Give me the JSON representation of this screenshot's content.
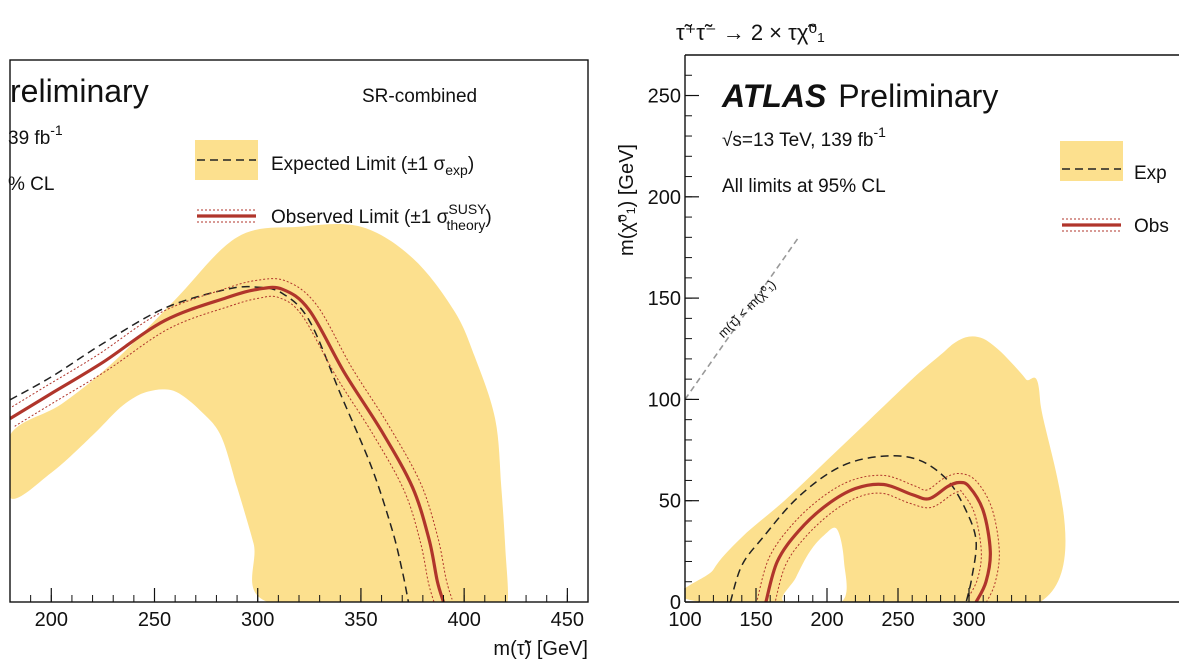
{
  "chart_data": [
    {
      "type": "contour-limit",
      "panel": "left",
      "label_lines": [
        "reliminary",
        "39 fb",
        "% CL"
      ],
      "label_sup": "-1",
      "sr_label": "SR-combined",
      "xlabel": "m(τ̃) [GeV]",
      "xlim": [
        180,
        460
      ],
      "ylim": [
        0,
        260
      ],
      "x_ticks": [
        200,
        250,
        300,
        350,
        400,
        450
      ],
      "legend": {
        "expected": {
          "text": "Expected Limit (±1 σ",
          "sub": "exp",
          "close": ")"
        },
        "observed": {
          "text": "Observed Limit (±1 σ",
          "sup": "SUSY",
          "sub": "theory",
          "close": ")"
        }
      },
      "series": [
        {
          "name": "Observed Limit",
          "x": [
            180,
            200,
            225,
            255,
            285,
            300,
            312,
            325,
            342,
            360,
            375,
            383,
            387,
            390
          ],
          "y": [
            88,
            100,
            115,
            135,
            146,
            150,
            150,
            140,
            110,
            82,
            55,
            30,
            10,
            0
          ]
        },
        {
          "name": "Expected Limit",
          "x": [
            180,
            200,
            225,
            255,
            285,
            300,
            312,
            325,
            340,
            355,
            365,
            370,
            373
          ],
          "y": [
            97,
            108,
            124,
            141,
            150,
            151,
            148,
            135,
            100,
            65,
            35,
            15,
            0
          ]
        }
      ],
      "band_expected_outer": {
        "x": [
          180,
          205,
          230,
          260,
          290,
          320,
          350,
          375,
          395,
          405,
          415,
          418,
          420,
          421,
          415,
          410,
          400,
          380,
          305,
          298,
          290,
          282,
          272,
          262,
          255,
          247,
          240,
          232,
          220,
          200,
          180
        ],
        "y": [
          80,
          95,
          115,
          145,
          175,
          180,
          180,
          165,
          140,
          118,
          88,
          55,
          25,
          0,
          0,
          0,
          0,
          0,
          0,
          28,
          55,
          80,
          92,
          100,
          102,
          101,
          98,
          92,
          80,
          62,
          50
        ]
      },
      "colors": {
        "band": "#fce08e",
        "observed": "#b0352b",
        "expected": "#222222"
      }
    },
    {
      "type": "contour-limit",
      "panel": "right",
      "title": "τ̃⁺τ̃⁻ → 2 × τχ̃⁰₁",
      "atlas": "ATLAS",
      "preliminary": "Preliminary",
      "energy": "√s=13 TeV, 139 fb",
      "energy_sup": "-1",
      "cl": "All limits at 95% CL",
      "diag_label": "m(τ̃) < m(χ̃⁰₁)",
      "xlabel": "",
      "ylabel": "m(χ̃⁰₁) [GeV]",
      "xlim": [
        100,
        350
      ],
      "ylim": [
        0,
        270
      ],
      "x_ticks": [
        100,
        150,
        200,
        250,
        300
      ],
      "y_ticks": [
        0,
        50,
        100,
        150,
        200,
        250
      ],
      "legend": {
        "expected": "Exp",
        "observed": "Obs"
      },
      "series": [
        {
          "name": "Observed Limit",
          "x": [
            157,
            165,
            180,
            200,
            220,
            240,
            260,
            272,
            285,
            293,
            300,
            310,
            315,
            312,
            305
          ],
          "y": [
            0,
            20,
            35,
            48,
            56,
            58,
            53,
            51,
            57,
            59,
            57,
            45,
            25,
            10,
            0
          ]
        },
        {
          "name": "Expected Limit",
          "x": [
            132,
            140,
            155,
            180,
            210,
            240,
            265,
            285,
            298,
            305,
            302,
            298
          ],
          "y": [
            0,
            18,
            32,
            52,
            67,
            72,
            70,
            60,
            45,
            30,
            12,
            0
          ]
        }
      ],
      "band_expected_outer": {
        "x": [
          113,
          120,
          140,
          170,
          200,
          230,
          260,
          280,
          290,
          300,
          310,
          320,
          330,
          340,
          350,
          350
        ],
        "y": [
          0,
          16,
          32,
          50,
          70,
          90,
          110,
          122,
          128,
          131,
          130,
          125,
          118,
          110,
          100,
          0
        ]
      },
      "band_inner_hole": {
        "x": [
          170,
          178,
          188,
          198,
          207,
          212,
          210
        ],
        "y": [
          0,
          12,
          25,
          33,
          36,
          20,
          0
        ]
      },
      "colors": {
        "band": "#fce08e",
        "observed": "#b0352b",
        "expected": "#222222",
        "diag": "#999999"
      }
    }
  ]
}
